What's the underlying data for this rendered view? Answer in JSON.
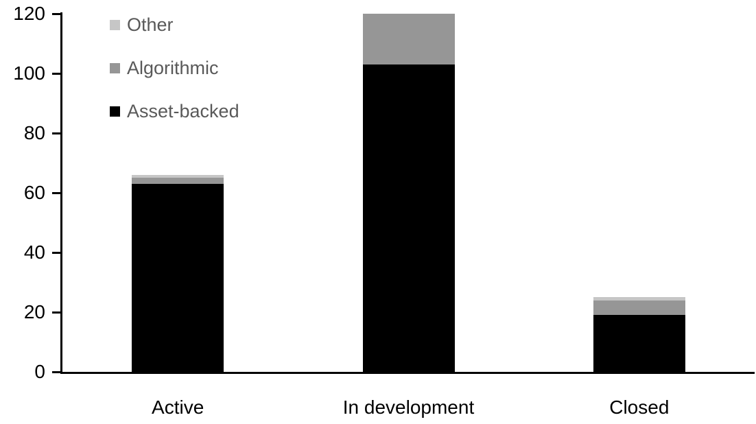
{
  "chart_data": {
    "type": "bar",
    "stacked": true,
    "title": "",
    "xlabel": "",
    "ylabel": "",
    "categories": [
      "Active",
      "In development",
      "Closed"
    ],
    "series": [
      {
        "name": "Asset-backed",
        "color": "#000000",
        "values": [
          63,
          103,
          19
        ]
      },
      {
        "name": "Algorithmic",
        "color": "#969696",
        "values": [
          2,
          17,
          5
        ]
      },
      {
        "name": "Other",
        "color": "#C6C6C6",
        "values": [
          1,
          0,
          1
        ]
      }
    ],
    "totals": [
      66,
      120,
      25
    ],
    "ylim": [
      0,
      120
    ],
    "yticks": [
      0,
      20,
      40,
      60,
      80,
      100,
      120
    ],
    "grid": false,
    "legend": {
      "position": "top-left",
      "order": [
        "Other",
        "Algorithmic",
        "Asset-backed"
      ],
      "text_color": "#595959"
    },
    "axis_color": "#000000",
    "background_color": "#ffffff"
  }
}
